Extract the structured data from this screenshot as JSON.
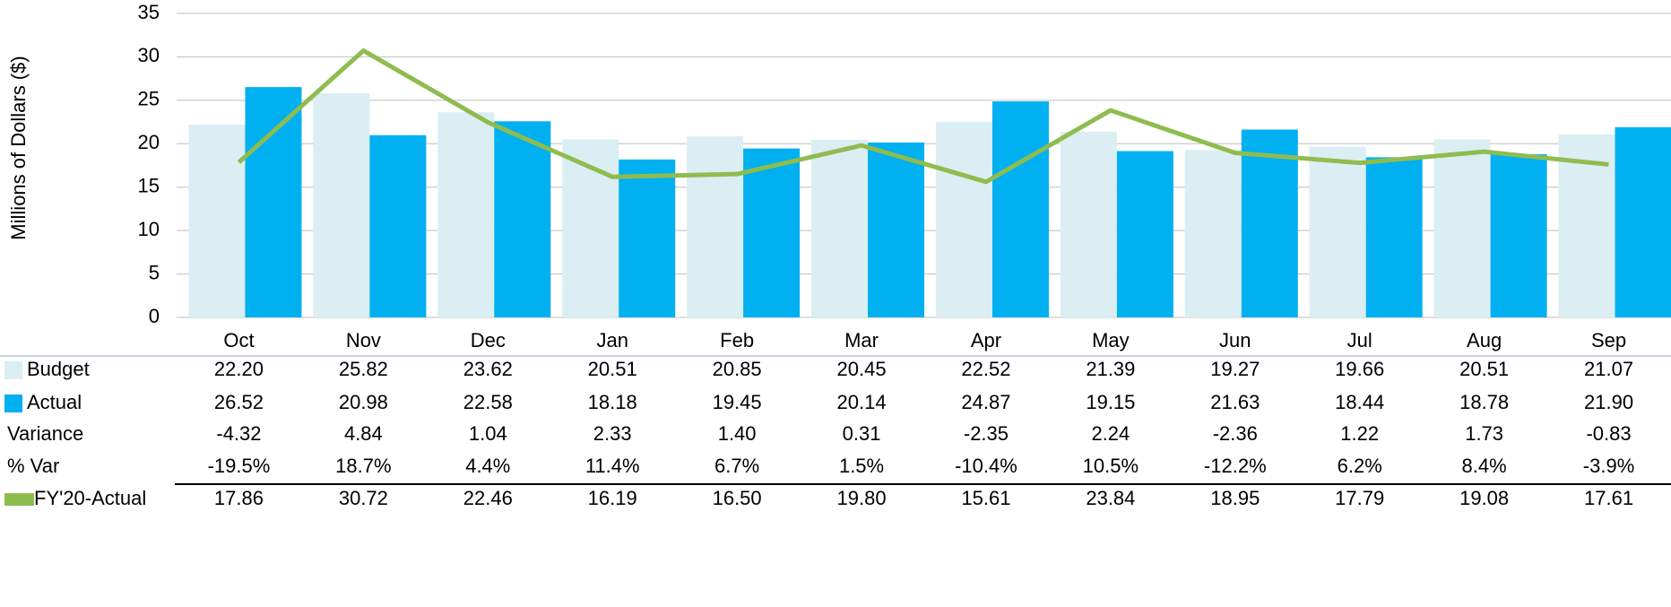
{
  "chart_data": {
    "type": "bar",
    "y_label": "Millions of Dollars ($)",
    "categories": [
      "Oct",
      "Nov",
      "Dec",
      "Jan",
      "Feb",
      "Mar",
      "Apr",
      "May",
      "Jun",
      "Jul",
      "Aug",
      "Sep"
    ],
    "ylim": [
      0,
      35
    ],
    "yticks": [
      0,
      5,
      10,
      15,
      20,
      25,
      30,
      35
    ],
    "grid": true,
    "series": [
      {
        "name": "Budget",
        "type": "bar",
        "color": "#daeef3",
        "values": [
          22.2,
          25.82,
          23.62,
          20.51,
          20.85,
          20.45,
          22.52,
          21.39,
          19.27,
          19.66,
          20.51,
          21.07
        ],
        "value_labels": [
          "22.20",
          "25.82",
          "23.62",
          "20.51",
          "20.85",
          "20.45",
          "22.52",
          "21.39",
          "19.27",
          "19.66",
          "20.51",
          "21.07"
        ]
      },
      {
        "name": "Actual",
        "type": "bar",
        "color": "#00b0f0",
        "values": [
          26.52,
          20.98,
          22.58,
          18.18,
          19.45,
          20.14,
          24.87,
          19.15,
          21.63,
          18.44,
          18.78,
          21.9
        ],
        "value_labels": [
          "26.52",
          "20.98",
          "22.58",
          "18.18",
          "19.45",
          "20.14",
          "24.87",
          "19.15",
          "21.63",
          "18.44",
          "18.78",
          "21.90"
        ]
      },
      {
        "name": "FY'20-Actual",
        "type": "line",
        "color": "#8fbc4f",
        "values": [
          17.86,
          30.72,
          22.46,
          16.19,
          16.5,
          19.8,
          15.61,
          23.84,
          18.95,
          17.79,
          19.08,
          17.61
        ],
        "value_labels": [
          "17.86",
          "30.72",
          "22.46",
          "16.19",
          "16.50",
          "19.80",
          "15.61",
          "23.84",
          "18.95",
          "17.79",
          "19.08",
          "17.61"
        ]
      }
    ],
    "table_rows": [
      {
        "name": "Variance",
        "values": [
          -4.32,
          4.84,
          1.04,
          2.33,
          1.4,
          0.31,
          -2.35,
          2.24,
          -2.36,
          1.22,
          1.73,
          -0.83
        ],
        "value_labels": [
          "-4.32",
          "4.84",
          "1.04",
          "2.33",
          "1.40",
          "0.31",
          "-2.35",
          "2.24",
          "-2.36",
          "1.22",
          "1.73",
          "-0.83"
        ]
      },
      {
        "name": "% Var",
        "values": [
          -19.5,
          18.7,
          4.4,
          11.4,
          6.7,
          1.5,
          -10.4,
          10.5,
          -12.2,
          6.2,
          8.4,
          -3.9
        ],
        "value_labels": [
          "-19.5%",
          "18.7%",
          "4.4%",
          "11.4%",
          "6.7%",
          "1.5%",
          "-10.4%",
          "10.5%",
          "-12.2%",
          "6.2%",
          "8.4%",
          "-3.9%"
        ]
      }
    ]
  }
}
